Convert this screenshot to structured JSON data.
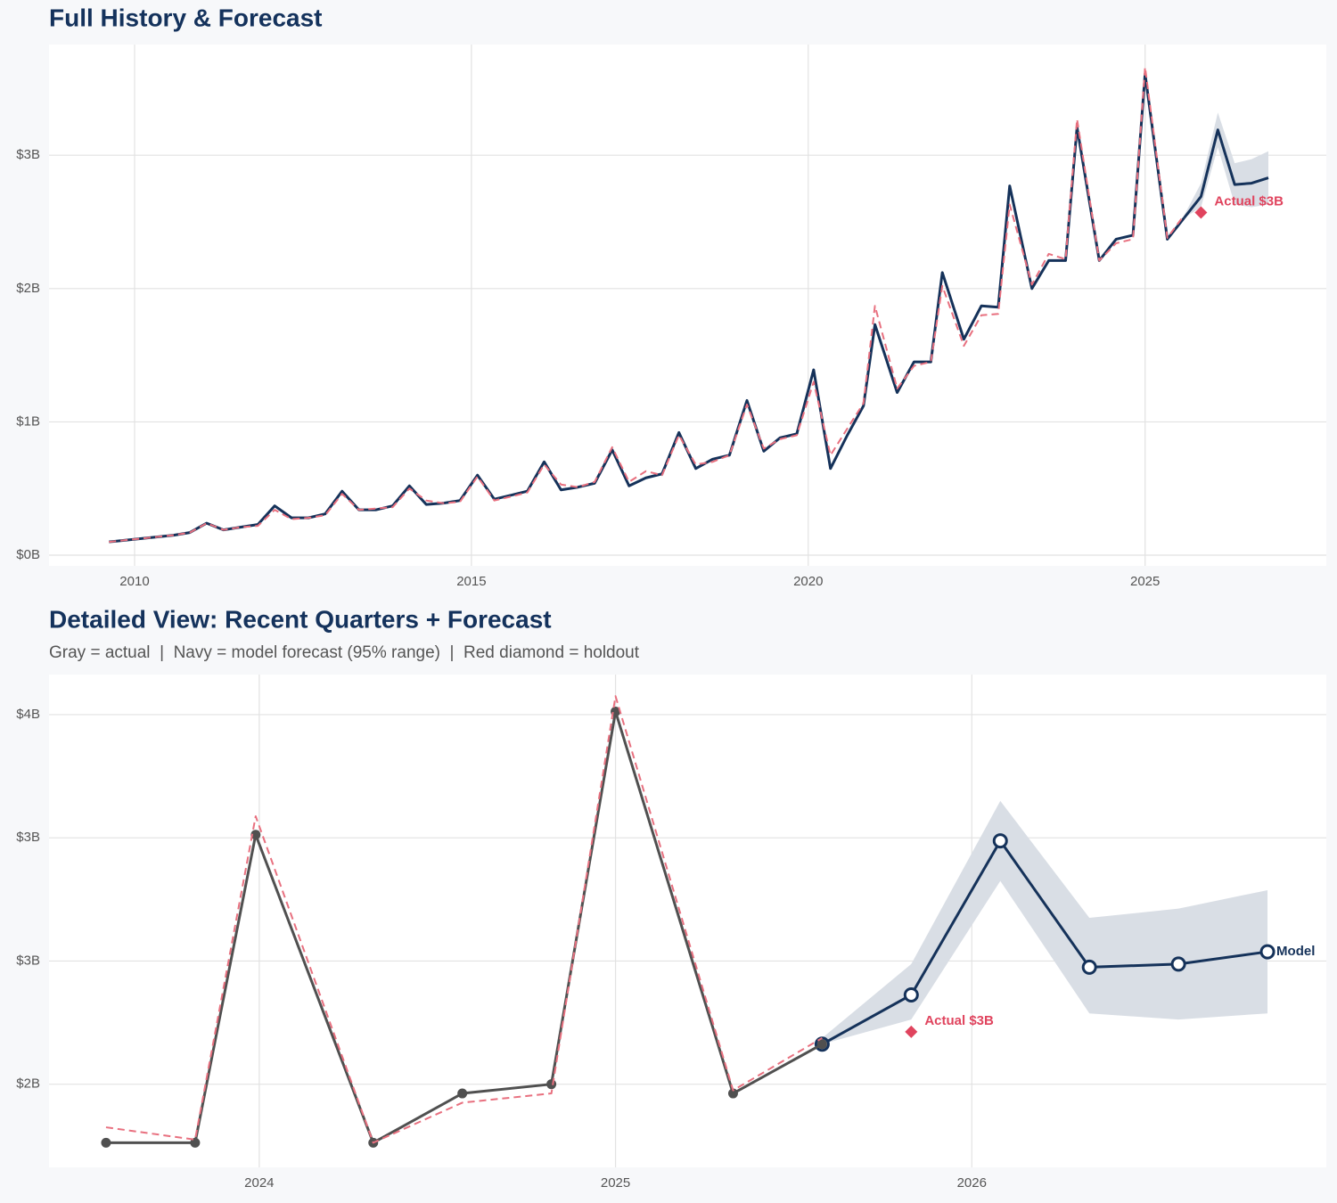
{
  "chart_data": [
    {
      "type": "line",
      "title": "Full History & Forecast",
      "xlim": [
        2008.73,
        2027.69
      ],
      "ylim": [
        -0.08,
        3.83
      ],
      "xticks": [
        2010,
        2015,
        2020,
        2025
      ],
      "yticks": [
        {
          "value": 0,
          "label": "$0B"
        },
        {
          "value": 1,
          "label": "$1B"
        },
        {
          "value": 2,
          "label": "$2B"
        },
        {
          "value": 3,
          "label": "$3B"
        }
      ],
      "grid": true,
      "band": {
        "x": [
          2025.58,
          2025.83,
          2026.08,
          2026.33,
          2026.58,
          2026.83
        ],
        "lower": [
          2.53,
          2.61,
          3.06,
          2.63,
          2.61,
          2.63
        ],
        "upper": [
          2.55,
          2.79,
          3.32,
          2.94,
          2.97,
          3.03
        ],
        "color": "#d9dee5"
      },
      "series": [
        {
          "color": "#15325a",
          "x": [
            2025.58,
            2025.83,
            2026.08,
            2026.33,
            2026.58,
            2026.83
          ],
          "values": [
            2.53,
            2.69,
            3.19,
            2.78,
            2.79,
            2.83
          ]
        },
        {
          "color": "#15325a",
          "x": [
            2009.62,
            2010.58,
            2010.82,
            2011.07,
            2011.32,
            2011.57,
            2011.83,
            2012.08,
            2012.33,
            2012.58,
            2012.83,
            2013.08,
            2013.33,
            2013.58,
            2013.83,
            2014.08,
            2014.33,
            2014.58,
            2014.83,
            2015.09,
            2015.34,
            2015.59,
            2015.83,
            2016.08,
            2016.33,
            2016.58,
            2016.83,
            2017.09,
            2017.34,
            2017.59,
            2017.83,
            2018.08,
            2018.33,
            2018.58,
            2018.83,
            2019.09,
            2019.34,
            2019.58,
            2019.83,
            2020.08,
            2020.33,
            2020.58,
            2020.82,
            2020.99,
            2021.32,
            2021.57,
            2021.82,
            2021.99,
            2022.31,
            2022.57,
            2022.82,
            2022.99,
            2023.32,
            2023.57,
            2023.82,
            2023.99,
            2024.32,
            2024.57,
            2024.82,
            2025.0,
            2025.33,
            2025.58
          ],
          "values": [
            0.1,
            0.15,
            0.17,
            0.24,
            0.19,
            0.21,
            0.23,
            0.37,
            0.28,
            0.28,
            0.31,
            0.48,
            0.34,
            0.34,
            0.37,
            0.52,
            0.38,
            0.39,
            0.41,
            0.6,
            0.42,
            0.45,
            0.48,
            0.7,
            0.49,
            0.51,
            0.54,
            0.79,
            0.52,
            0.58,
            0.61,
            0.92,
            0.65,
            0.72,
            0.75,
            1.16,
            0.78,
            0.88,
            0.91,
            1.39,
            0.65,
            0.9,
            1.12,
            1.73,
            1.22,
            1.45,
            1.45,
            2.12,
            1.62,
            1.87,
            1.86,
            2.77,
            2.0,
            2.21,
            2.21,
            3.21,
            2.21,
            2.37,
            2.4,
            3.61,
            2.37,
            2.53
          ]
        },
        {
          "color": "#e8707f",
          "dash": true,
          "x": [
            2009.62,
            2010.58,
            2010.82,
            2011.07,
            2011.32,
            2011.57,
            2011.83,
            2012.08,
            2012.33,
            2012.58,
            2012.83,
            2013.08,
            2013.33,
            2013.58,
            2013.83,
            2014.08,
            2014.33,
            2014.58,
            2014.83,
            2015.09,
            2015.34,
            2015.59,
            2015.83,
            2016.08,
            2016.33,
            2016.58,
            2016.83,
            2017.09,
            2017.34,
            2017.59,
            2017.83,
            2018.08,
            2018.33,
            2018.58,
            2018.83,
            2019.09,
            2019.34,
            2019.58,
            2019.83,
            2020.08,
            2020.33,
            2020.58,
            2020.82,
            2020.99,
            2021.32,
            2021.57,
            2021.82,
            2021.99,
            2022.31,
            2022.57,
            2022.82,
            2022.99,
            2023.32,
            2023.57,
            2023.82,
            2023.99,
            2024.32,
            2024.57,
            2024.82,
            2025.0,
            2025.33,
            2025.58
          ],
          "values": [
            0.1,
            0.15,
            0.17,
            0.24,
            0.19,
            0.21,
            0.22,
            0.34,
            0.27,
            0.28,
            0.3,
            0.46,
            0.34,
            0.35,
            0.36,
            0.5,
            0.41,
            0.39,
            0.4,
            0.59,
            0.41,
            0.44,
            0.47,
            0.68,
            0.53,
            0.51,
            0.55,
            0.81,
            0.55,
            0.63,
            0.6,
            0.9,
            0.68,
            0.7,
            0.75,
            1.13,
            0.8,
            0.87,
            0.9,
            1.3,
            0.75,
            0.95,
            1.14,
            1.87,
            1.25,
            1.42,
            1.45,
            2.02,
            1.57,
            1.8,
            1.81,
            2.63,
            2.03,
            2.26,
            2.22,
            3.27,
            2.21,
            2.34,
            2.37,
            3.66,
            2.38,
            2.55
          ]
        }
      ],
      "holdout": {
        "x": 2025.83,
        "value": 2.57,
        "label": "Actual $3B",
        "color": "#e0445e"
      }
    },
    {
      "type": "line",
      "title": "Detailed View: Recent Quarters + Forecast",
      "subtitle": "Gray = actual  |  Navy = model forecast (95% range)  |  Red diamond = holdout",
      "xlim": [
        2023.41,
        2026.995
      ],
      "ylim": [
        2.13,
        3.73
      ],
      "xticks": [
        2024,
        2025,
        2026
      ],
      "yticks": [
        {
          "value": 2.4,
          "label": "$2B"
        },
        {
          "value": 2.8,
          "label": "$3B"
        },
        {
          "value": 3.2,
          "label": "$3B"
        },
        {
          "value": 3.6,
          "label": "$4B"
        }
      ],
      "grid": true,
      "band": {
        "x": [
          2025.58,
          2025.83,
          2026.08,
          2026.33,
          2026.58,
          2026.83
        ],
        "lower": [
          2.53,
          2.61,
          3.06,
          2.63,
          2.61,
          2.63
        ],
        "upper": [
          2.55,
          2.79,
          3.32,
          2.94,
          2.97,
          3.03
        ],
        "color": "#d9dee5"
      },
      "series": [
        {
          "color": "#15325a",
          "markers": "hollow",
          "end_label": "Model",
          "x": [
            2025.58,
            2025.83,
            2026.08,
            2026.33,
            2026.58,
            2026.83
          ],
          "values": [
            2.53,
            2.69,
            3.19,
            2.78,
            2.79,
            2.83
          ]
        },
        {
          "color": "#505050",
          "markers": "filled",
          "x": [
            2023.57,
            2023.82,
            2023.99,
            2024.32,
            2024.57,
            2024.82,
            2025.0,
            2025.33,
            2025.58
          ],
          "values": [
            2.21,
            2.21,
            3.21,
            2.21,
            2.37,
            2.4,
            3.61,
            2.37,
            2.53
          ]
        },
        {
          "color": "#e8707f",
          "dash": true,
          "x": [
            2023.57,
            2023.82,
            2023.99,
            2024.32,
            2024.57,
            2024.82,
            2025.0,
            2025.33,
            2025.58
          ],
          "values": [
            2.26,
            2.22,
            3.27,
            2.21,
            2.34,
            2.37,
            3.66,
            2.38,
            2.55
          ]
        }
      ],
      "holdout": {
        "x": 2025.83,
        "value": 2.57,
        "label": "Actual $3B",
        "color": "#e0445e"
      }
    }
  ]
}
